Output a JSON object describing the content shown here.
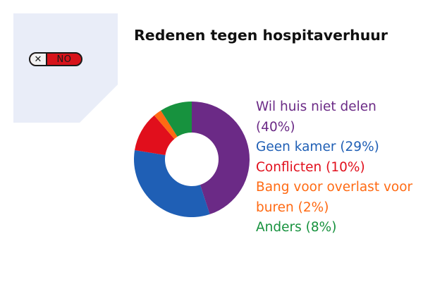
{
  "toggle": {
    "icon": "close-icon",
    "icon_glyph": "✕",
    "label": "NO"
  },
  "colors": {
    "panel_bg": "#e9edf8",
    "toggle_fill": "#d7131b"
  },
  "chart_data": {
    "type": "pie",
    "variant": "donut",
    "title": "Redenen tegen hospitaverhuur",
    "series": [
      {
        "label": "Wil huis niet delen",
        "legend_text": "Wil huis niet delen (40%)",
        "value": 40,
        "color": "#6b2a86"
      },
      {
        "label": "Geen kamer",
        "legend_text": "Geen kamer (29%)",
        "value": 29,
        "color": "#1f5fb5"
      },
      {
        "label": "Conflicten",
        "legend_text": "Conflicten (10%)",
        "value": 10,
        "color": "#e10f1c"
      },
      {
        "label": "Bang voor overlast voor buren",
        "legend_text": "Bang voor overlast voor buren (2%)",
        "value": 2,
        "color": "#ff6a13"
      },
      {
        "label": "Anders",
        "legend_text": "Anders (8%)",
        "value": 8,
        "color": "#17923e"
      }
    ],
    "legend_position": "right"
  }
}
